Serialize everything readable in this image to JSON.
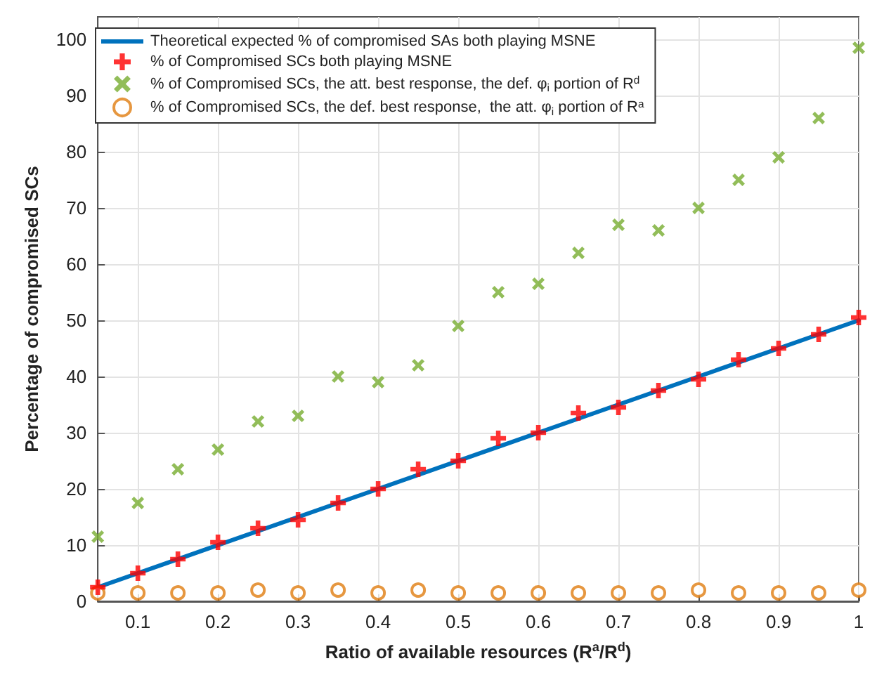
{
  "chart_data": {
    "type": "scatter",
    "xlabel": "Ratio of available resources (R$^{a}$/R$^{d}$)",
    "ylabel": "Percentage of compromised SCs",
    "xlim": [
      0.05,
      1
    ],
    "xticks": [
      0.1,
      0.2,
      0.3,
      0.4,
      0.5,
      0.6,
      0.7,
      0.8,
      0.9,
      1
    ],
    "ylim": [
      0,
      104
    ],
    "yticks": [
      0,
      10,
      20,
      30,
      40,
      50,
      60,
      70,
      80,
      90,
      100
    ],
    "grid": true,
    "legend": "top left",
    "series": [
      {
        "name": "Theoretical expected % of compromised SAs both playing MSNE",
        "type": "line",
        "color": "#0072bd",
        "marker": "none",
        "line_style": "solid",
        "x": [
          0.05,
          1
        ],
        "values": [
          2.5,
          50
        ]
      },
      {
        "name": "% of Compromised SCs both playing MSNE",
        "color": "#ff0000",
        "marker": "cross",
        "x": [
          0.05,
          0.1,
          0.15,
          0.2,
          0.25,
          0.3,
          0.35,
          0.4,
          0.45,
          0.5,
          0.55,
          0.6,
          0.65,
          0.7,
          0.75,
          0.8,
          0.85,
          0.9,
          0.95,
          1
        ],
        "values": [
          2.5,
          5,
          7.5,
          10.5,
          13,
          14.5,
          17.5,
          20,
          23.5,
          25,
          29,
          30,
          33.5,
          34.5,
          37.5,
          39.5,
          43,
          45,
          47.5,
          50.5
        ]
      },
      {
        "name": "% of Compromised SCs, the att. best response, the def. φ$_{i}$ portion of R$^{d}$",
        "color": "#77ac30",
        "marker": "x",
        "x": [
          0.05,
          0.1,
          0.15,
          0.2,
          0.25,
          0.3,
          0.35,
          0.4,
          0.45,
          0.5,
          0.55,
          0.6,
          0.65,
          0.7,
          0.75,
          0.8,
          0.85,
          0.9,
          0.95,
          1
        ],
        "values": [
          11.5,
          17.5,
          23.5,
          27,
          32,
          33,
          40,
          39,
          42,
          49,
          55,
          56.5,
          62,
          67,
          66,
          70,
          75,
          79,
          86,
          98.5
        ]
      },
      {
        "name": "% of Compromised SCs, the def. best response,  the att. φ$_{i}$ portion of R$^{a}$",
        "color": "#e07d10",
        "marker": "circle",
        "x": [
          0.05,
          0.1,
          0.15,
          0.2,
          0.25,
          0.3,
          0.35,
          0.4,
          0.45,
          0.5,
          0.55,
          0.6,
          0.65,
          0.7,
          0.75,
          0.8,
          0.85,
          0.9,
          0.95,
          1
        ],
        "values": [
          1.5,
          1.5,
          1.5,
          1.5,
          2,
          1.5,
          2,
          1.5,
          2,
          1.5,
          1.5,
          1.5,
          1.5,
          1.5,
          1.5,
          2,
          1.5,
          1.5,
          1.5,
          2
        ]
      }
    ]
  }
}
